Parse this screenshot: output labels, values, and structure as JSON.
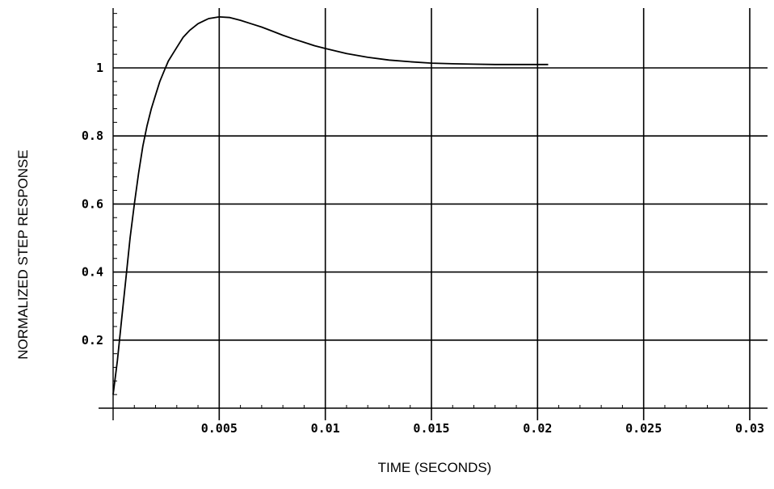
{
  "chart_data": {
    "type": "line",
    "title": "",
    "xlabel": "TIME (SECONDS)",
    "ylabel": "NORMALIZED STEP RESPONSE",
    "xlim": [
      0,
      0.03
    ],
    "ylim": [
      -0.02,
      1.2
    ],
    "grid": true,
    "x_ticks": [
      {
        "value": 0.005,
        "label": "0.005"
      },
      {
        "value": 0.01,
        "label": "0.01"
      },
      {
        "value": 0.015,
        "label": "0.015"
      },
      {
        "value": 0.02,
        "label": "0.02"
      },
      {
        "value": 0.025,
        "label": "0.025"
      },
      {
        "value": 0.03,
        "label": "0.03"
      }
    ],
    "y_ticks": [
      {
        "value": 0.2,
        "label": "0.2"
      },
      {
        "value": 0.4,
        "label": "0.4"
      },
      {
        "value": 0.6,
        "label": "0.6"
      },
      {
        "value": 0.8,
        "label": "0.8"
      },
      {
        "value": 1,
        "label": "1"
      }
    ],
    "series": [
      {
        "x": [
          0,
          0.0002,
          0.0004,
          0.0006,
          0.0008,
          0.001,
          0.0012,
          0.0014,
          0.0016,
          0.0018,
          0.002,
          0.0022,
          0.0024,
          0.0026,
          0.0028,
          0.003,
          0.0033,
          0.0036,
          0.004,
          0.0045,
          0.005,
          0.0055,
          0.006,
          0.0065,
          0.007,
          0.0075,
          0.008,
          0.0085,
          0.009,
          0.0095,
          0.01,
          0.011,
          0.012,
          0.013,
          0.014,
          0.015,
          0.016,
          0.017,
          0.018,
          0.019,
          0.0205
        ],
        "y": [
          0.04,
          0.14,
          0.26,
          0.38,
          0.5,
          0.6,
          0.69,
          0.77,
          0.83,
          0.88,
          0.92,
          0.96,
          0.99,
          1.02,
          1.04,
          1.06,
          1.09,
          1.11,
          1.13,
          1.145,
          1.15,
          1.148,
          1.14,
          1.13,
          1.12,
          1.108,
          1.096,
          1.085,
          1.075,
          1.065,
          1.057,
          1.042,
          1.031,
          1.023,
          1.018,
          1.014,
          1.012,
          1.011,
          1.01,
          1.01,
          1.01
        ],
        "color": "#000000"
      }
    ]
  }
}
